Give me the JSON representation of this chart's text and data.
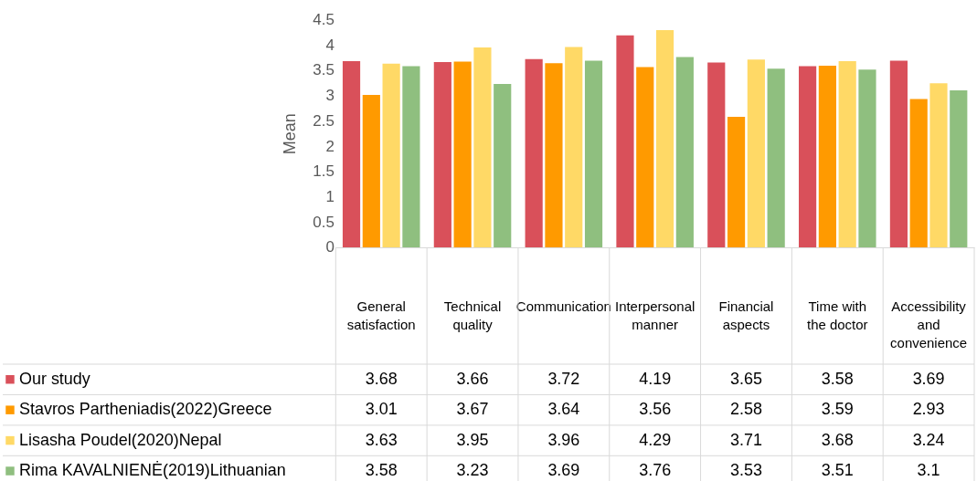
{
  "chart_data": {
    "type": "bar",
    "ylabel": "Mean",
    "categories": [
      "General satisfaction",
      "Technical quality",
      "Communication",
      "Interpersonal manner",
      "Financial aspects",
      "Time with the doctor",
      "Accessibility and convenience"
    ],
    "series": [
      {
        "name": "Our study",
        "color": "#d9505a",
        "values": [
          3.68,
          3.66,
          3.72,
          4.19,
          3.65,
          3.58,
          3.69
        ]
      },
      {
        "name": "Stavros Partheniadis(2022)Greece",
        "color": "#ff9a00",
        "values": [
          3.01,
          3.67,
          3.64,
          3.56,
          2.58,
          3.59,
          2.93
        ]
      },
      {
        "name": "Lisasha Poudel(2020)Nepal",
        "color": "#ffd966",
        "values": [
          3.63,
          3.95,
          3.96,
          4.29,
          3.71,
          3.68,
          3.24
        ]
      },
      {
        "name": "Rima KAVALNIENĖ(2019)Lithuanian",
        "color": "#8fbf7f",
        "values": [
          3.58,
          3.23,
          3.69,
          3.76,
          3.53,
          3.51,
          3.1
        ]
      }
    ],
    "ylim": [
      0,
      4.5
    ],
    "yticks": [
      0,
      0.5,
      1,
      1.5,
      2,
      2.5,
      3,
      3.5,
      4,
      4.5
    ],
    "grid": false,
    "legend": "left",
    "data_labels": true
  }
}
